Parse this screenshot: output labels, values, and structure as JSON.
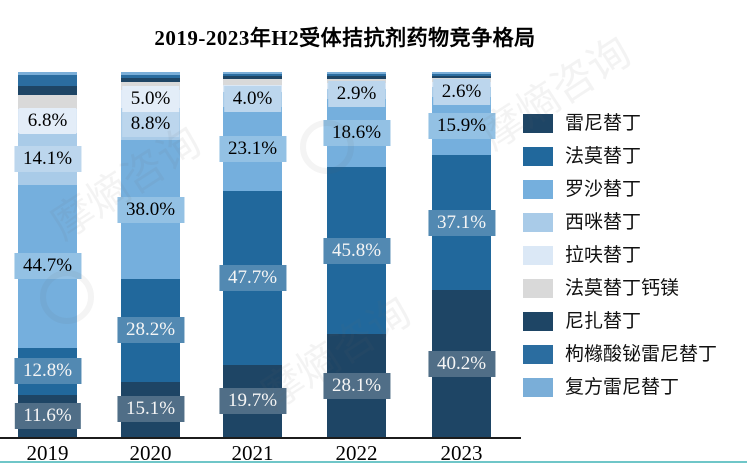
{
  "title": "2019-2023年H2受体拮抗剂药物竞争格局",
  "watermark": "摩熵咨询",
  "chart_data": {
    "type": "bar",
    "stacked": true,
    "title": "2019-2023年H2受体拮抗剂药物竞争格局",
    "categories": [
      "2019",
      "2020",
      "2021",
      "2022",
      "2023"
    ],
    "unit": "%",
    "ylim": [
      0,
      100
    ],
    "grid": false,
    "legend_position": "right",
    "series": [
      {
        "name": "雷尼替丁",
        "color": "#1e4565",
        "text": "light",
        "values": [
          11.6,
          15.1,
          19.7,
          28.1,
          40.2
        ],
        "labels": [
          "11.6%",
          "15.1%",
          "19.7%",
          "28.1%",
          "40.2%"
        ]
      },
      {
        "name": "法莫替丁",
        "color": "#21689c",
        "text": "light",
        "values": [
          12.8,
          28.2,
          47.7,
          45.8,
          37.1
        ],
        "labels": [
          "12.8%",
          "28.2%",
          "47.7%",
          "45.8%",
          "37.1%"
        ]
      },
      {
        "name": "罗沙替丁",
        "color": "#75afdd",
        "text": "dark",
        "values": [
          44.7,
          38.0,
          23.1,
          18.6,
          15.9
        ],
        "labels": [
          "44.7%",
          "38.0%",
          "23.1%",
          "18.6%",
          "15.9%"
        ]
      },
      {
        "name": "西咪替丁",
        "color": "#a9cbe8",
        "text": "dark",
        "values": [
          14.1,
          8.8,
          4.0,
          2.9,
          2.6
        ],
        "labels": [
          "14.1%",
          "8.8%",
          "4.0%",
          "2.9%",
          "2.6%"
        ]
      },
      {
        "name": "拉呋替丁",
        "color": "#dbe8f6",
        "text": "dark",
        "values": [
          6.8,
          5.0,
          2.0,
          1.6,
          1.4
        ],
        "labels": [
          "6.8%",
          "5.0%",
          "",
          "",
          ""
        ]
      },
      {
        "name": "法莫替丁钙镁",
        "color": "#d9d9d9",
        "text": "dark",
        "values": [
          3.7,
          2.2,
          1.5,
          1.2,
          1.1
        ],
        "labels": [
          "",
          "",
          "",
          "",
          ""
        ]
      },
      {
        "name": "尼扎替丁",
        "color": "#1e4565",
        "text": "light",
        "values": [
          2.6,
          1.0,
          0.8,
          0.7,
          0.7
        ],
        "labels": [
          "",
          "",
          "",
          "",
          ""
        ]
      },
      {
        "name": "枸橼酸铋雷尼替丁",
        "color": "#2b6da0",
        "text": "light",
        "values": [
          2.9,
          1.0,
          0.8,
          0.7,
          0.6
        ],
        "labels": [
          "",
          "",
          "",
          "",
          ""
        ]
      },
      {
        "name": "复方雷尼替丁",
        "color": "#7aaed8",
        "text": "dark",
        "values": [
          0.8,
          0.7,
          0.4,
          0.4,
          0.4
        ],
        "labels": [
          "",
          "",
          "",
          "",
          ""
        ]
      }
    ]
  }
}
